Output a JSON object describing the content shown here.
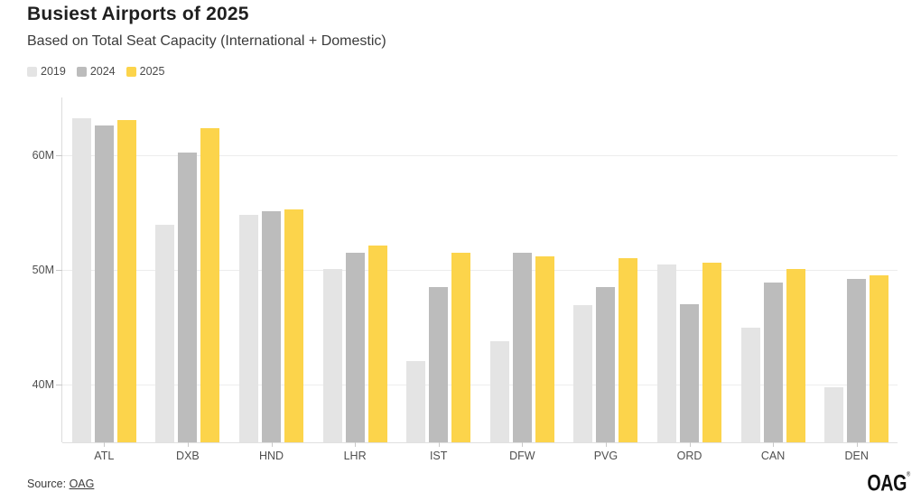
{
  "header": {
    "title": "Busiest Airports of 2025",
    "subtitle": "Based on Total Seat Capacity (International + Domestic)"
  },
  "chart_data": {
    "type": "bar",
    "title": "Busiest Airports of 2025",
    "subtitle": "Based on Total Seat Capacity (International + Domestic)",
    "categories": [
      "ATL",
      "DXB",
      "HND",
      "LHR",
      "IST",
      "DFW",
      "PVG",
      "ORD",
      "CAN",
      "DEN"
    ],
    "series": [
      {
        "name": "2019",
        "color": "#e4e4e4",
        "values": [
          63.2,
          53.9,
          54.8,
          50.1,
          42.1,
          43.8,
          46.9,
          50.5,
          45.0,
          39.8
        ]
      },
      {
        "name": "2024",
        "color": "#bcbcbc",
        "values": [
          62.6,
          60.2,
          55.1,
          51.5,
          48.5,
          51.5,
          48.5,
          47.0,
          48.9,
          49.2
        ]
      },
      {
        "name": "2025",
        "color": "#fcd44b",
        "values": [
          63.0,
          62.3,
          55.3,
          52.1,
          51.5,
          51.2,
          51.0,
          50.6,
          50.1,
          49.5
        ]
      }
    ],
    "values_unit": "M",
    "xlabel": "",
    "ylabel": "",
    "ylim": [
      35,
      65
    ],
    "y_ticks": [
      {
        "value": 40,
        "label": "40M"
      },
      {
        "value": 50,
        "label": "50M"
      },
      {
        "value": 60,
        "label": "60M"
      }
    ],
    "grid": true,
    "legend_position": "top-left"
  },
  "footer": {
    "source_prefix": "Source: ",
    "source_link": "OAG",
    "logo_text": "OAG",
    "logo_trademark": "®"
  }
}
